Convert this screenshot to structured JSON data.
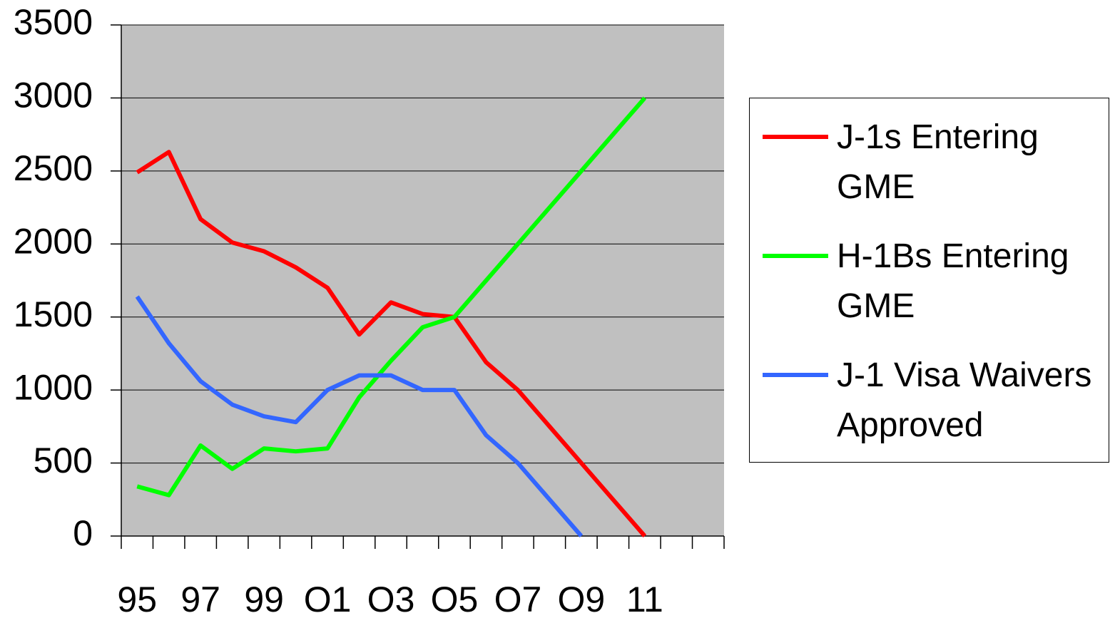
{
  "chart_data": {
    "type": "line",
    "categories": [
      "95",
      null,
      "97",
      null,
      "99",
      null,
      "O1",
      null,
      "O3",
      null,
      "O5",
      null,
      "O7",
      null,
      "O9",
      null,
      "11",
      null,
      null
    ],
    "series": [
      {
        "name": "J-1s Entering GME",
        "color": "#ff0000",
        "values": [
          2490,
          2630,
          2170,
          2010,
          1950,
          1840,
          1700,
          1380,
          1600,
          1520,
          1500,
          1190,
          1000,
          750,
          500,
          250,
          0,
          null,
          null
        ]
      },
      {
        "name": "H-1Bs Entering GME",
        "color": "#00ff00",
        "values": [
          340,
          280,
          620,
          460,
          600,
          580,
          600,
          950,
          1200,
          1430,
          1500,
          1750,
          2000,
          2250,
          2500,
          2750,
          3000,
          null,
          null
        ]
      },
      {
        "name": "J-1 Visa Waivers Approved",
        "color": "#3366ff",
        "values": [
          1640,
          1320,
          1060,
          900,
          820,
          780,
          1000,
          1100,
          1100,
          1000,
          1000,
          690,
          500,
          250,
          0,
          null,
          null,
          null,
          null
        ]
      }
    ],
    "ylim": [
      0,
      3500
    ],
    "yticks": [
      0,
      500,
      1000,
      1500,
      2000,
      2500,
      3000,
      3500
    ],
    "grid": true,
    "plot_background": "#c0c0c0",
    "legend": "right"
  }
}
